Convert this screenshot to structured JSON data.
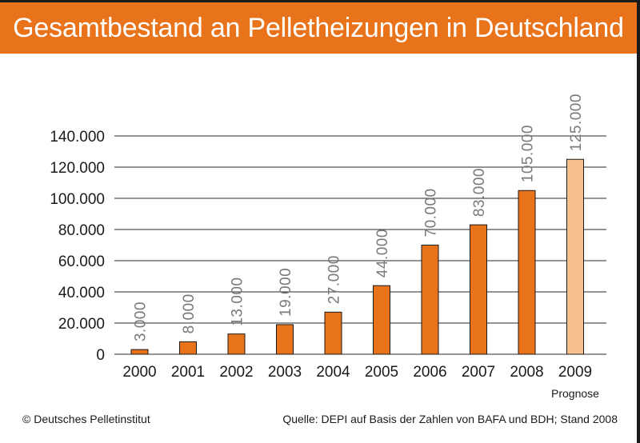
{
  "header": {
    "title": "Gesamtbestand an Pelletheizungen in Deutschland"
  },
  "chart_data": {
    "type": "bar",
    "title": "Gesamtbestand an Pelletheizungen in Deutschland",
    "categories": [
      "2000",
      "2001",
      "2002",
      "2003",
      "2004",
      "2005",
      "2006",
      "2007",
      "2008",
      "2009"
    ],
    "values": [
      3000,
      8000,
      13000,
      19000,
      27000,
      44000,
      70000,
      83000,
      105000,
      125000
    ],
    "value_labels": [
      "3.000",
      "8.000",
      "13.000",
      "19.000",
      "27.000",
      "44.000",
      "70.000",
      "83.000",
      "105.000",
      "125.000"
    ],
    "y_ticks": [
      0,
      20000,
      40000,
      60000,
      80000,
      100000,
      120000,
      140000
    ],
    "y_tick_labels": [
      "0",
      "20.000",
      "40.000",
      "60.000",
      "80.000",
      "100.000",
      "120.000",
      "140.000"
    ],
    "ylim": [
      0,
      140000
    ],
    "grid": "horizontal",
    "xlabel": "",
    "ylabel": "",
    "bar_color": "#e8731a",
    "forecast_color": "#f7c08f",
    "forecast_categories": [
      "2009"
    ],
    "forecast_note": "Prognose"
  },
  "footer": {
    "copyright": "© Deutsches Pelletinstitut",
    "source": "Quelle: DEPI auf Basis der Zahlen von BAFA und BDH; Stand 2008"
  },
  "colors": {
    "title_bar": "#e8731a",
    "title_text": "#ffffff",
    "frame": "#1a1a1a"
  }
}
